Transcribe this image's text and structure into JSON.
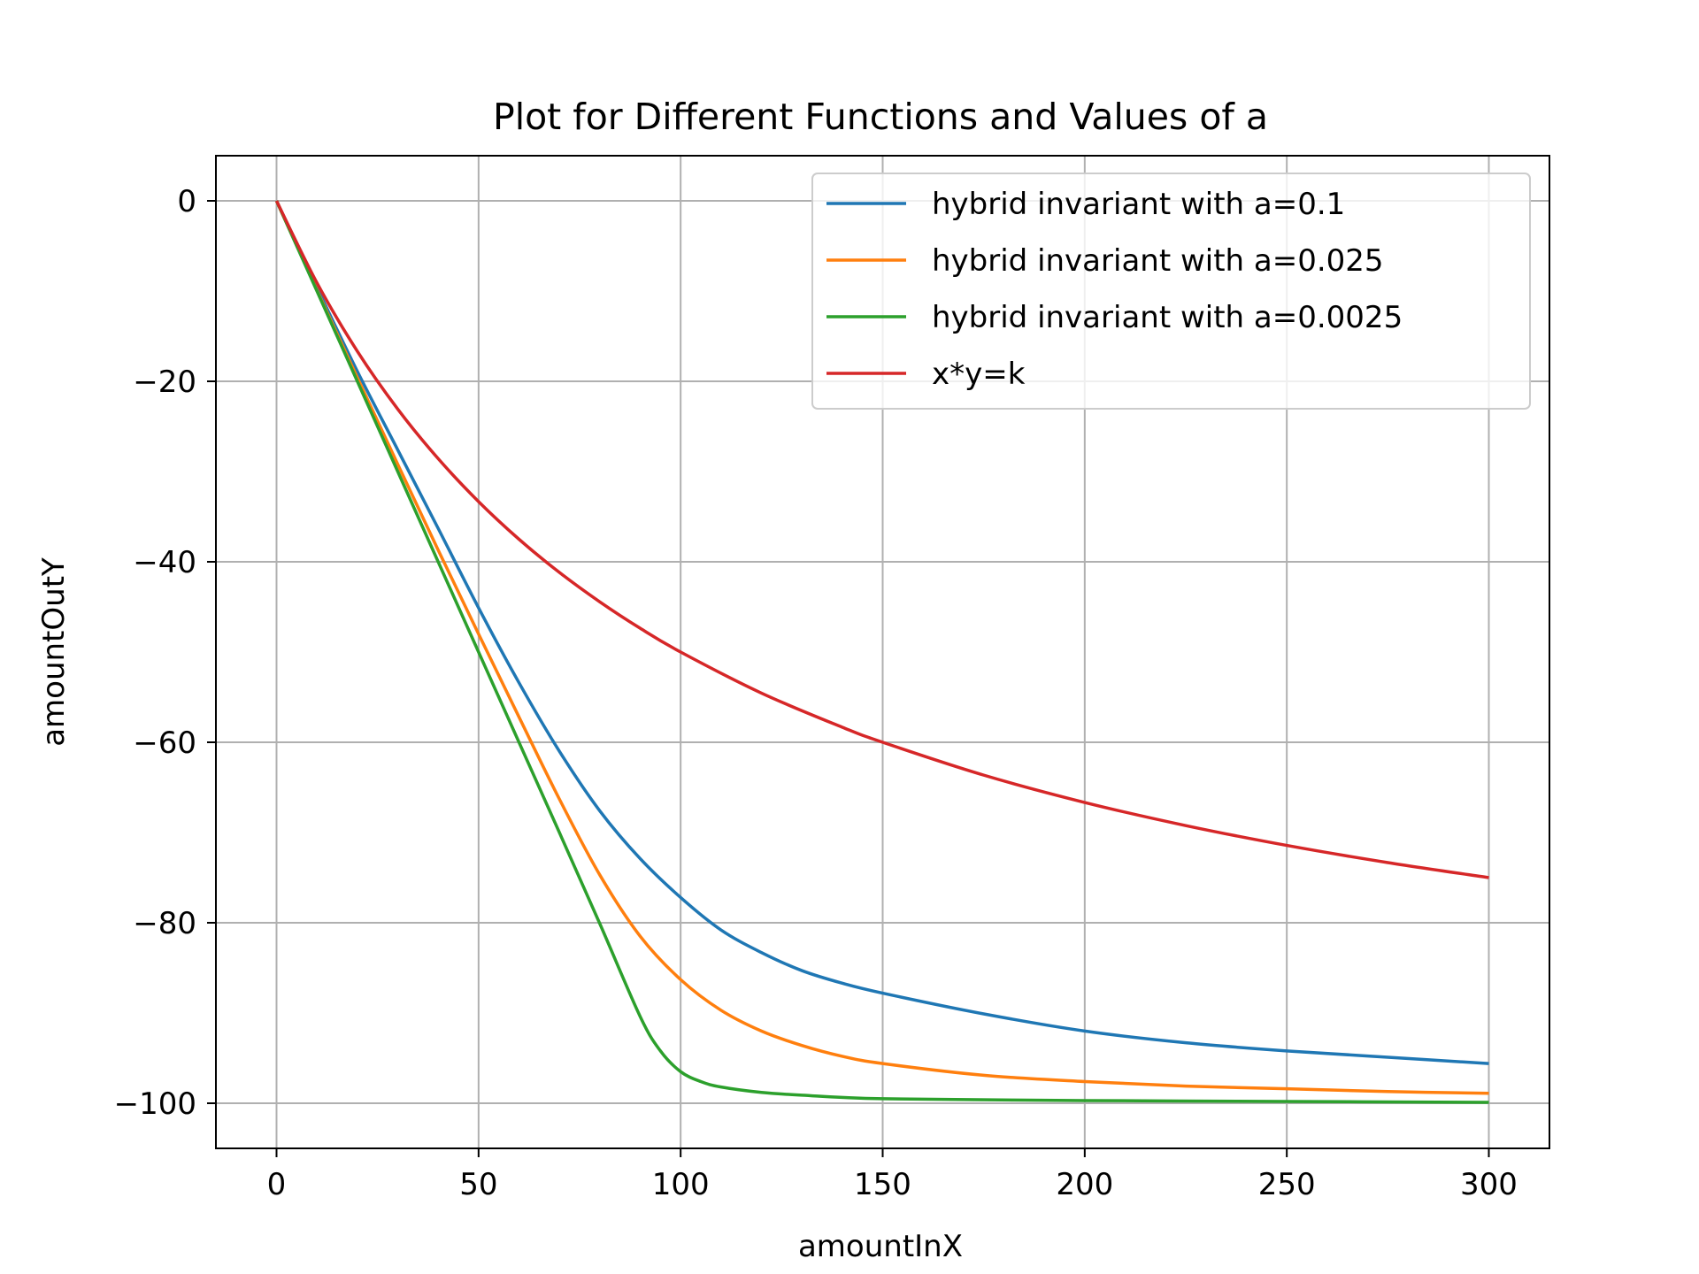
{
  "chart_data": {
    "type": "line",
    "title": "Plot for Different Functions and Values of a",
    "xlabel": "amountInX",
    "ylabel": "amountOutY",
    "xlim": [
      -15,
      315
    ],
    "ylim": [
      -105,
      5
    ],
    "x_ticks": [
      0,
      50,
      100,
      150,
      200,
      250,
      300
    ],
    "y_ticks": [
      0,
      -20,
      -40,
      -60,
      -80,
      -100
    ],
    "x_tick_labels": [
      "0",
      "50",
      "100",
      "150",
      "200",
      "250",
      "300"
    ],
    "y_tick_labels": [
      "0",
      "−20",
      "−40",
      "−60",
      "−80",
      "−100"
    ],
    "grid": true,
    "legend_position": "upper right",
    "series": [
      {
        "name": "hybrid invariant with a=0.1",
        "color": "#1f77b4",
        "x": [
          0,
          10,
          20,
          30,
          40,
          50,
          60,
          70,
          80,
          90,
          100,
          110,
          120,
          130,
          140,
          150,
          175,
          200,
          225,
          250,
          275,
          300
        ],
        "y": [
          0,
          -9.6,
          -18.9,
          -27.6,
          -36.3,
          -45.1,
          -53.4,
          -61.0,
          -67.6,
          -72.9,
          -77.2,
          -80.8,
          -83.3,
          -85.3,
          -86.7,
          -87.8,
          -90.1,
          -92.0,
          -93.3,
          -94.2,
          -94.9,
          -95.6
        ]
      },
      {
        "name": "hybrid invariant with a=0.025",
        "color": "#ff7f0e",
        "x": [
          0,
          10,
          20,
          30,
          40,
          50,
          60,
          70,
          80,
          90,
          100,
          110,
          120,
          130,
          140,
          150,
          175,
          200,
          225,
          250,
          275,
          300
        ],
        "y": [
          0,
          -9.9,
          -19.6,
          -29.2,
          -38.7,
          -48.0,
          -57.2,
          -66.3,
          -74.7,
          -81.5,
          -86.3,
          -89.7,
          -92.0,
          -93.6,
          -94.8,
          -95.6,
          -96.9,
          -97.6,
          -98.1,
          -98.4,
          -98.7,
          -98.9
        ]
      },
      {
        "name": "hybrid invariant with a=0.0025",
        "color": "#2ca02c",
        "x": [
          0,
          10,
          20,
          30,
          40,
          50,
          60,
          70,
          80,
          90,
          95,
          100,
          105,
          110,
          120,
          130,
          150,
          200,
          250,
          300
        ],
        "y": [
          0,
          -10.0,
          -20.0,
          -30.0,
          -40.0,
          -50.0,
          -60.0,
          -70.0,
          -80.1,
          -90.4,
          -94.2,
          -96.5,
          -97.6,
          -98.2,
          -98.8,
          -99.1,
          -99.5,
          -99.7,
          -99.8,
          -99.9
        ]
      },
      {
        "name": "x*y=k",
        "color": "#d62728",
        "x": [
          0,
          10,
          20,
          30,
          40,
          50,
          60,
          70,
          80,
          90,
          100,
          120,
          140,
          150,
          175,
          200,
          225,
          250,
          275,
          300
        ],
        "y": [
          0,
          -9.09,
          -16.67,
          -23.08,
          -28.57,
          -33.33,
          -37.5,
          -41.18,
          -44.44,
          -47.37,
          -50.0,
          -54.55,
          -58.33,
          -60.0,
          -63.64,
          -66.67,
          -69.23,
          -71.43,
          -73.33,
          -75.0
        ]
      }
    ]
  }
}
